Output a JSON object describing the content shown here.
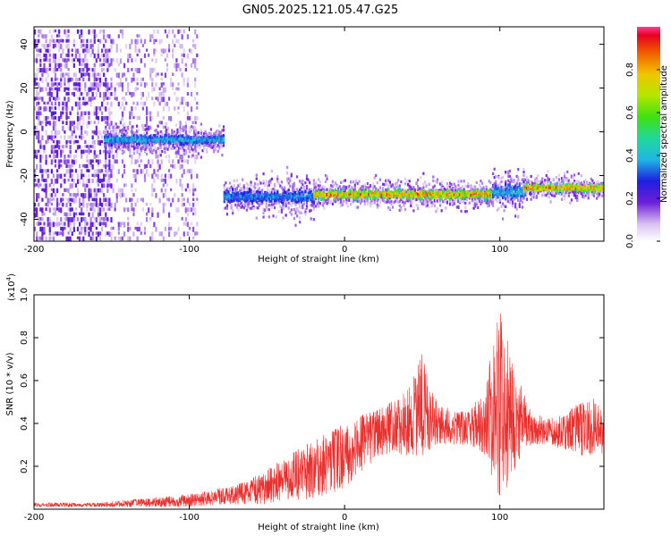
{
  "title": "GN05.2025.121.05.47.G25",
  "chart_data": [
    {
      "type": "heatmap",
      "xlabel": "Height of straight line (km)",
      "ylabel": "Frequency (Hz)",
      "xlim": [
        -200,
        167
      ],
      "ylim": [
        -50,
        48
      ],
      "xticks": [
        -200,
        -100,
        0,
        100
      ],
      "yticks": [
        -40,
        -20,
        0,
        20,
        40
      ],
      "colorbar": {
        "label": "Normalized spectral amplitude",
        "range": [
          0,
          1
        ],
        "ticks": [
          "0.0",
          "0.2",
          "0.4",
          "0.6",
          "0.8"
        ]
      },
      "features": [
        {
          "x": [
            -200,
            -95
          ],
          "freq_center": 0,
          "description_level": "scattered noise"
        },
        {
          "x": [
            -155,
            -78
          ],
          "freq_center": -3,
          "freq_width": 6,
          "peak": 0.45
        },
        {
          "x": [
            -78,
            -20
          ],
          "freq_center": -29,
          "freq_width": 9,
          "peak": 0.4
        },
        {
          "x": [
            -20,
            95
          ],
          "freq_center": -28,
          "freq_width": 6,
          "peak": 1.0
        },
        {
          "x": [
            95,
            115
          ],
          "freq_center": -27,
          "freq_width": 10,
          "peak": 0.45
        },
        {
          "x": [
            115,
            167
          ],
          "freq_center": -25,
          "freq_width": 5,
          "peak": 1.0
        }
      ]
    },
    {
      "type": "line",
      "xlabel": "Height of straight line (km)",
      "ylabel": "SNR (10 * v/v)",
      "yscale_label": "(x10",
      "yscale_exp": "4",
      "yscale_close": ")",
      "xlim": [
        -200,
        167
      ],
      "ylim": [
        0,
        1.0
      ],
      "xticks": [
        -200,
        -100,
        0,
        100
      ],
      "yticks": [
        0.2,
        0.4,
        0.6,
        0.8,
        1.0
      ],
      "series": [
        {
          "color": "#e8302e",
          "envelope": {
            "x": [
              -200,
              -160,
              -130,
              -100,
              -80,
              -60,
              -45,
              -30,
              -15,
              0,
              10,
              20,
              30,
              40,
              45,
              50,
              55,
              60,
              70,
              80,
              90,
              95,
              100,
              105,
              110,
              115,
              120,
              130,
              140,
              150,
              160,
              167
            ],
            "mean": [
              0.02,
              0.02,
              0.03,
              0.04,
              0.06,
              0.08,
              0.12,
              0.16,
              0.2,
              0.25,
              0.3,
              0.35,
              0.38,
              0.4,
              0.45,
              0.48,
              0.42,
              0.4,
              0.38,
              0.38,
              0.4,
              0.45,
              0.5,
              0.45,
              0.42,
              0.4,
              0.38,
              0.36,
              0.36,
              0.37,
              0.38,
              0.36
            ],
            "spread": [
              0.01,
              0.01,
              0.02,
              0.03,
              0.04,
              0.06,
              0.1,
              0.12,
              0.15,
              0.15,
              0.14,
              0.12,
              0.12,
              0.15,
              0.2,
              0.25,
              0.15,
              0.1,
              0.08,
              0.08,
              0.15,
              0.3,
              0.45,
              0.35,
              0.25,
              0.15,
              0.08,
              0.06,
              0.08,
              0.12,
              0.14,
              0.1
            ]
          }
        }
      ]
    }
  ]
}
